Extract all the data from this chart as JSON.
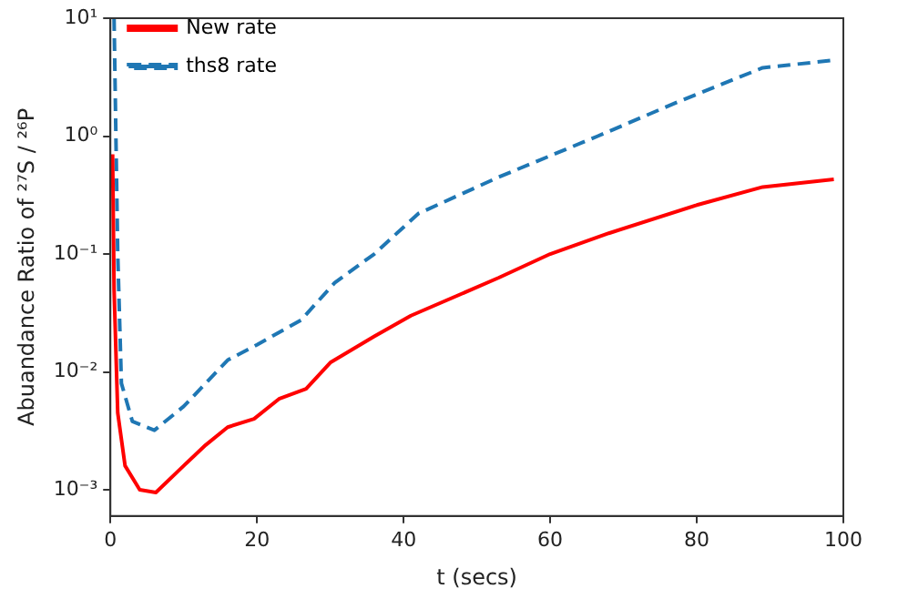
{
  "chart_data": {
    "type": "line",
    "xlabel": "t (secs)",
    "ylabel": "Abuandance Ratio of ²⁷S / ²⁶P",
    "log": "y",
    "grid": false,
    "legend": "top left",
    "marker": "none",
    "xlim": [
      0,
      100
    ],
    "xticks": [
      0,
      20,
      40,
      60,
      80,
      100
    ],
    "ylim": [
      0.0006,
      10
    ],
    "yticks": [
      {
        "value": 0.001,
        "label": "10⁻³"
      },
      {
        "value": 0.01,
        "label": "10⁻²"
      },
      {
        "value": 0.1,
        "label": "10⁻¹"
      },
      {
        "value": 1,
        "label": "10⁰"
      },
      {
        "value": 10,
        "label": "10¹"
      }
    ],
    "series": [
      {
        "name": "New rate",
        "color": "#ff0000",
        "line_style": "solid",
        "x": [
          0.3,
          0.5,
          1,
          2,
          4,
          6.2,
          10,
          13,
          16,
          19.6,
          23,
          26.7,
          30,
          36,
          41,
          53,
          60,
          68,
          80,
          89,
          98.7
        ],
        "values": [
          0.7,
          0.05,
          0.0045,
          0.0016,
          0.001,
          0.00095,
          0.0016,
          0.0024,
          0.0034,
          0.004,
          0.0059,
          0.0072,
          0.012,
          0.02,
          0.03,
          0.063,
          0.1,
          0.15,
          0.26,
          0.37,
          0.43
        ]
      },
      {
        "name": "ths8 rate",
        "color": "#1f77b4",
        "line_style": "dashed",
        "x": [
          0.5,
          1,
          1.5,
          3,
          6,
          10,
          16,
          20,
          26,
          30.6,
          36,
          42,
          53,
          66.5,
          77,
          89,
          98.7
        ],
        "values": [
          10,
          0.1,
          0.008,
          0.0038,
          0.0032,
          0.0051,
          0.0126,
          0.017,
          0.0275,
          0.057,
          0.1,
          0.22,
          0.45,
          1.0,
          1.9,
          3.8,
          4.4
        ]
      }
    ]
  }
}
